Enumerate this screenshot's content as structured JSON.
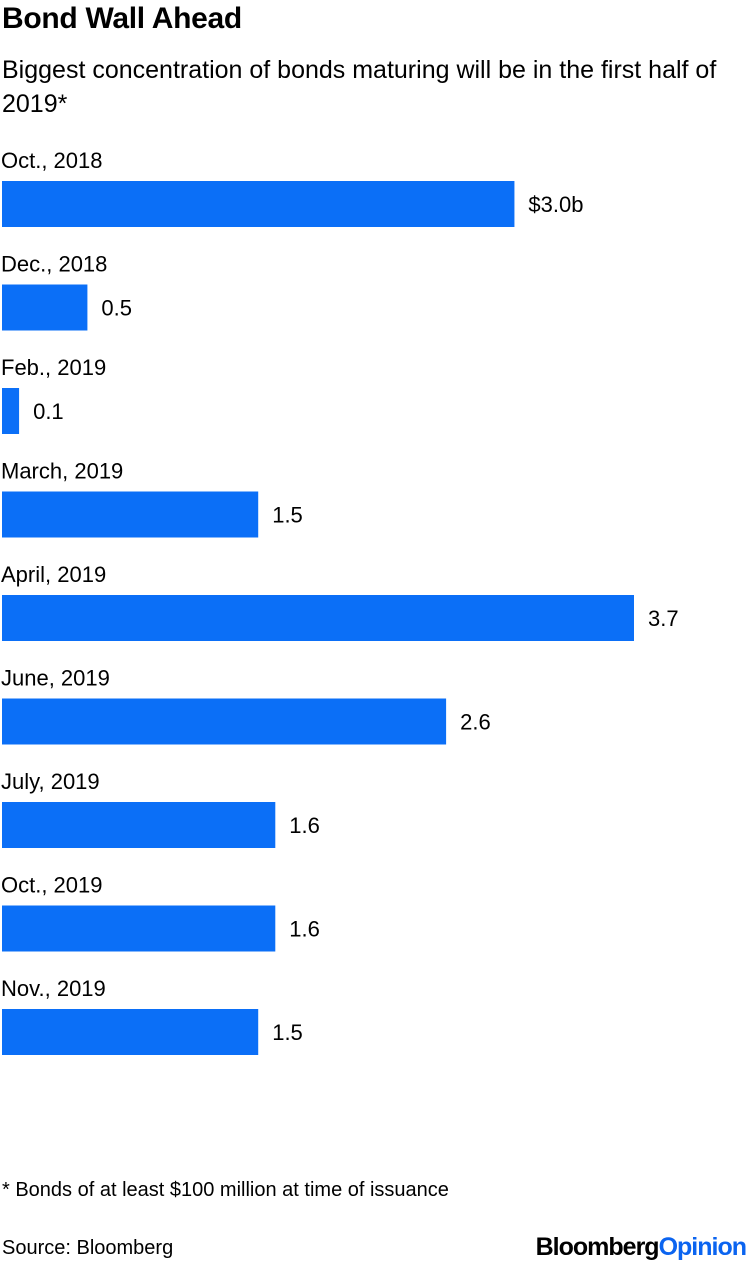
{
  "header": {
    "title": "Bond Wall Ahead",
    "subtitle": "Biggest concentration of bonds maturing will be in the first half of 2019*"
  },
  "chart_data": {
    "type": "bar",
    "orientation": "horizontal",
    "categories": [
      "Oct., 2018",
      "Dec., 2018",
      "Feb., 2019",
      "March, 2019",
      "April, 2019",
      "June, 2019",
      "July, 2019",
      "Oct., 2019",
      "Nov., 2019"
    ],
    "values": [
      3.0,
      0.5,
      0.1,
      1.5,
      3.7,
      2.6,
      1.6,
      1.6,
      1.5
    ],
    "value_labels": [
      "$3.0b",
      "0.5",
      "0.1",
      "1.5",
      "3.7",
      "2.6",
      "1.6",
      "1.6",
      "1.5"
    ],
    "unit": "$ billions",
    "xlim": [
      0,
      3.7
    ],
    "grid": false,
    "legend": "none",
    "colors": {
      "bar": "#0b6ff7"
    }
  },
  "footer": {
    "footnote": "* Bonds of at least $100 million at time of issuance",
    "source": "Source: Bloomberg",
    "brand_part1": "Bloomberg",
    "brand_part2": "Opinion"
  }
}
